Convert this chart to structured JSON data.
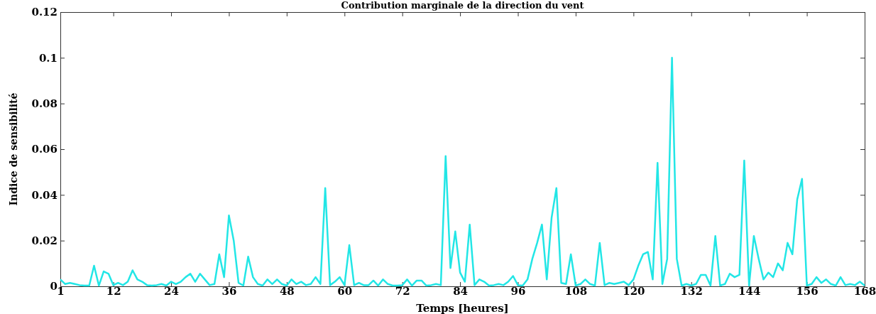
{
  "chart_data": {
    "type": "line",
    "title": "Contribution marginale de la direction du vent",
    "xlabel": "Temps [heures]",
    "ylabel": "Indice de sensibilité",
    "x": [
      1,
      2,
      3,
      4,
      5,
      6,
      7,
      8,
      9,
      10,
      11,
      12,
      13,
      14,
      15,
      16,
      17,
      18,
      19,
      20,
      21,
      22,
      23,
      24,
      25,
      26,
      27,
      28,
      29,
      30,
      31,
      32,
      33,
      34,
      35,
      36,
      37,
      38,
      39,
      40,
      41,
      42,
      43,
      44,
      45,
      46,
      47,
      48,
      49,
      50,
      51,
      52,
      53,
      54,
      55,
      56,
      57,
      58,
      59,
      60,
      61,
      62,
      63,
      64,
      65,
      66,
      67,
      68,
      69,
      70,
      71,
      72,
      73,
      74,
      75,
      76,
      77,
      78,
      79,
      80,
      81,
      82,
      83,
      84,
      85,
      86,
      87,
      88,
      89,
      90,
      91,
      92,
      93,
      94,
      95,
      96,
      97,
      98,
      99,
      100,
      101,
      102,
      103,
      104,
      105,
      106,
      107,
      108,
      109,
      110,
      111,
      112,
      113,
      114,
      115,
      116,
      117,
      118,
      119,
      120,
      121,
      122,
      123,
      124,
      125,
      126,
      127,
      128,
      129,
      130,
      131,
      132,
      133,
      134,
      135,
      136,
      137,
      138,
      139,
      140,
      141,
      142,
      143,
      144,
      145,
      146,
      147,
      148,
      149,
      150,
      151,
      152,
      153,
      154,
      155,
      156,
      157,
      158,
      159,
      160,
      161,
      162,
      163,
      164,
      165,
      166,
      167,
      168
    ],
    "series": [
      {
        "color": "#22e6e6",
        "values": [
          0.003,
          0.001,
          0.0015,
          0.001,
          0.0005,
          0.0003,
          0.0003,
          0.009,
          0.0003,
          0.0065,
          0.0055,
          0.0005,
          0.0015,
          0.0005,
          0.002,
          0.007,
          0.003,
          0.002,
          0.0005,
          0.0003,
          0.0005,
          0.001,
          0.0003,
          0.002,
          0.001,
          0.002,
          0.004,
          0.0055,
          0.002,
          0.0055,
          0.003,
          0.0005,
          0.001,
          0.014,
          0.004,
          0.031,
          0.02,
          0.0015,
          0.0003,
          0.013,
          0.004,
          0.001,
          0.0003,
          0.003,
          0.001,
          0.003,
          0.001,
          0.0003,
          0.003,
          0.001,
          0.002,
          0.0005,
          0.001,
          0.004,
          0.001,
          0.043,
          0.0005,
          0.002,
          0.004,
          0.0005,
          0.018,
          0.0005,
          0.0015,
          0.0005,
          0.0005,
          0.0025,
          0.0003,
          0.003,
          0.001,
          0.0003,
          0.0003,
          0.0005,
          0.003,
          0.0003,
          0.0025,
          0.0025,
          0.0003,
          0.0005,
          0.001,
          0.0005,
          0.057,
          0.008,
          0.024,
          0.006,
          0.002,
          0.027,
          0.0005,
          0.003,
          0.002,
          0.0003,
          0.0005,
          0.001,
          0.0005,
          0.002,
          0.0045,
          0.0005,
          0.0003,
          0.003,
          0.012,
          0.019,
          0.027,
          0.003,
          0.03,
          0.043,
          0.0015,
          0.001,
          0.014,
          0.0003,
          0.001,
          0.003,
          0.001,
          0.0003,
          0.019,
          0.0005,
          0.0015,
          0.001,
          0.0015,
          0.002,
          0.0005,
          0.003,
          0.009,
          0.014,
          0.015,
          0.003,
          0.054,
          0.001,
          0.012,
          0.1,
          0.012,
          0.0003,
          0.001,
          0.0003,
          0.001,
          0.005,
          0.005,
          0.0003,
          0.022,
          0.0003,
          0.001,
          0.0055,
          0.004,
          0.005,
          0.055,
          0.0003,
          0.022,
          0.012,
          0.003,
          0.006,
          0.004,
          0.01,
          0.007,
          0.019,
          0.014,
          0.038,
          0.047,
          0.0003,
          0.001,
          0.004,
          0.0015,
          0.003,
          0.001,
          0.0003,
          0.004,
          0.0005,
          0.001,
          0.0005,
          0.002,
          0.0003
        ]
      }
    ],
    "xlim": [
      1,
      168
    ],
    "xticks": [
      1,
      12,
      24,
      36,
      48,
      60,
      72,
      84,
      96,
      108,
      120,
      132,
      144,
      156,
      168
    ],
    "ylim": [
      0,
      0.12
    ],
    "yticks": [
      0,
      0.02,
      0.04,
      0.06,
      0.08,
      0.1,
      0.12
    ],
    "marker": "none",
    "line_style": "solid"
  }
}
